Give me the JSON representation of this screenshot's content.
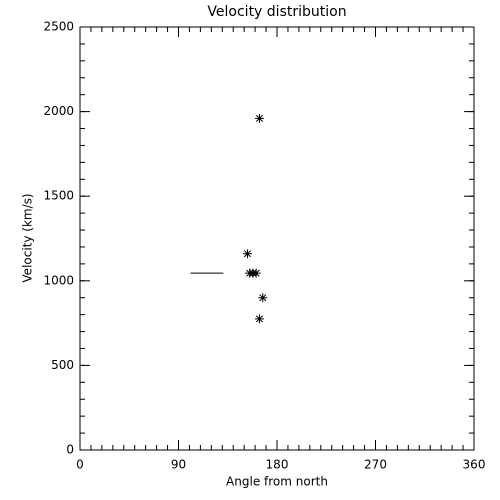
{
  "chart_data": {
    "type": "scatter",
    "title": "Velocity distribution",
    "x_label": "Angle from north",
    "y_label": "Velocity (km/s)",
    "series": [
      {
        "mode": "markers",
        "color": "#000000",
        "x": [
          164,
          153,
          155,
          158,
          161,
          167,
          164
        ],
        "values": [
          1960,
          1160,
          1045,
          1045,
          1045,
          900,
          775
        ]
      },
      {
        "mode": "line",
        "color": "#000000",
        "x": [
          101,
          131
        ],
        "values": [
          1045,
          1045
        ]
      }
    ],
    "xlim": [
      0,
      360
    ],
    "xticks": [
      0,
      90,
      180,
      270,
      360
    ],
    "ylim": [
      0,
      2500
    ],
    "yticks": [
      0,
      500,
      1000,
      1500,
      2000,
      2500
    ],
    "minor_step": {
      "x": 10,
      "y": 100
    },
    "grid": false
  }
}
